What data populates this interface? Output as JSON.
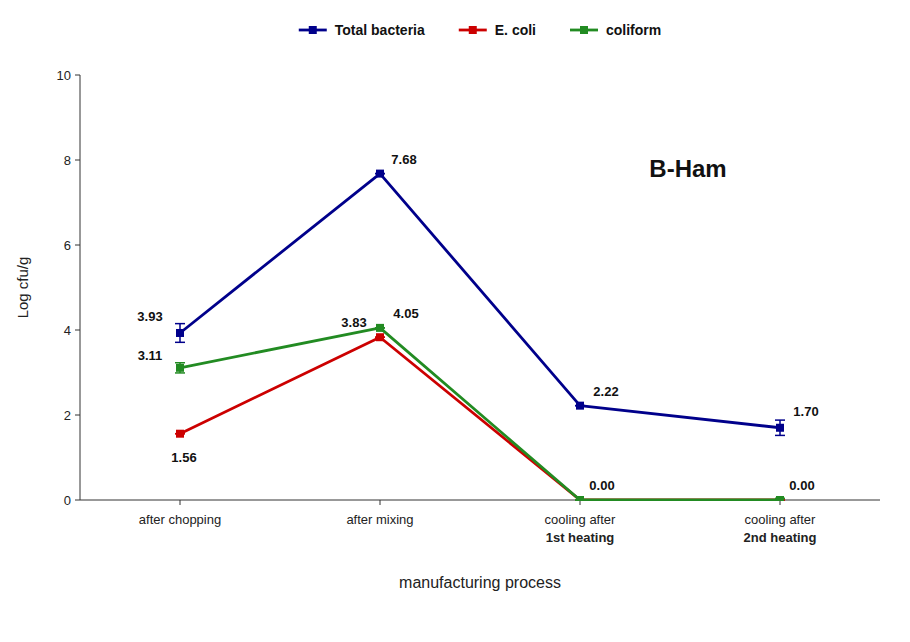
{
  "chart_data": {
    "type": "line",
    "title": "B-Ham",
    "xlabel": "manufacturing process",
    "ylabel": "Log cfu/g",
    "categories": [
      "after chopping",
      "after mixing",
      "cooling after\n1st heating",
      "cooling after\n2nd heating"
    ],
    "series": [
      {
        "name": "Total bacteria",
        "color": "#00008B",
        "values": [
          3.93,
          7.68,
          2.22,
          1.7
        ],
        "errors": [
          0.22,
          0.0,
          0.0,
          0.18
        ],
        "value_labels": [
          "3.93",
          "7.68",
          "2.22",
          "1.70"
        ]
      },
      {
        "name": "E. coli",
        "color": "#CC0000",
        "values": [
          1.56,
          3.83,
          0.0,
          0.0
        ],
        "errors": [
          0.0,
          0.0,
          0.0,
          0.0
        ],
        "value_labels": [
          "1.56",
          "3.83",
          "0.00",
          "0.00"
        ]
      },
      {
        "name": "coliform",
        "color": "#228B22",
        "values": [
          3.11,
          4.05,
          0.0,
          0.0
        ],
        "errors": [
          0.12,
          0.0,
          0.0,
          0.04
        ],
        "value_labels": [
          "3.11",
          "4.05",
          null,
          null
        ]
      }
    ],
    "ylim": [
      0,
      10
    ],
    "yticks": [
      0,
      2,
      4,
      6,
      8,
      10
    ],
    "grid": false,
    "legend": "top",
    "marker": "square",
    "data_labels": true
  }
}
